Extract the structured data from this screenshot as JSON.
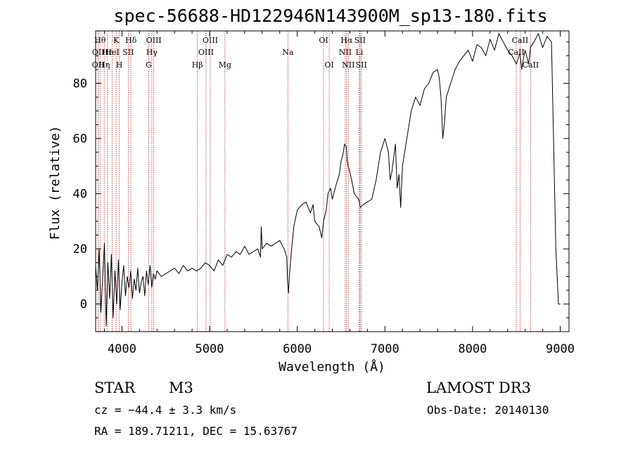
{
  "colors": {
    "line_marker": "#b22222",
    "spectrum": "#000000",
    "axes": "#000000"
  },
  "title": "spec-56688-HD122946N143900M_sp13-180.fits",
  "info": {
    "class_label": "STAR",
    "subclass": "M3",
    "survey": "LAMOST DR3",
    "cz": "cz = −44.4 ± 3.3 km/s",
    "obs_date": "Obs-Date: 20140130",
    "radec": "RA = 189.71211, DEC =  15.63767"
  },
  "chart_data": {
    "type": "line",
    "title": "spec-56688-HD122946N143900M_sp13-180.fits",
    "xlabel": "Wavelength (Å)",
    "ylabel": "Flux (relative)",
    "xlim": [
      3700,
      9100
    ],
    "ylim": [
      -10,
      99
    ],
    "xticks": [
      4000,
      5000,
      6000,
      7000,
      8000,
      9000
    ],
    "yticks": [
      0,
      20,
      40,
      60,
      80
    ],
    "grid": false,
    "series": [
      {
        "name": "spectrum",
        "x": [
          3700,
          3720,
          3740,
          3760,
          3780,
          3800,
          3820,
          3840,
          3860,
          3880,
          3900,
          3920,
          3940,
          3960,
          3980,
          4000,
          4020,
          4040,
          4060,
          4080,
          4100,
          4120,
          4140,
          4160,
          4180,
          4200,
          4220,
          4240,
          4260,
          4280,
          4300,
          4320,
          4340,
          4360,
          4380,
          4400,
          4450,
          4500,
          4550,
          4600,
          4650,
          4700,
          4750,
          4800,
          4850,
          4900,
          4950,
          5000,
          5050,
          5100,
          5150,
          5200,
          5250,
          5300,
          5350,
          5400,
          5450,
          5500,
          5550,
          5580,
          5590,
          5600,
          5650,
          5700,
          5750,
          5800,
          5850,
          5880,
          5890,
          5900,
          5910,
          5930,
          5960,
          6000,
          6050,
          6100,
          6150,
          6180,
          6200,
          6250,
          6280,
          6300,
          6330,
          6350,
          6380,
          6400,
          6450,
          6480,
          6500,
          6520,
          6540,
          6560,
          6570,
          6580,
          6600,
          6620,
          6650,
          6700,
          6720,
          6750,
          6800,
          6850,
          6900,
          6950,
          7000,
          7040,
          7050,
          7060,
          7080,
          7100,
          7120,
          7140,
          7160,
          7180,
          7200,
          7300,
          7350,
          7400,
          7450,
          7500,
          7550,
          7600,
          7620,
          7640,
          7660,
          7680,
          7700,
          7750,
          7800,
          7850,
          7900,
          7950,
          8000,
          8050,
          8100,
          8150,
          8200,
          8250,
          8300,
          8350,
          8400,
          8450,
          8500,
          8540,
          8560,
          8580,
          8600,
          8640,
          8660,
          8700,
          8750,
          8800,
          8850,
          8900,
          8950,
          8980,
          9000
        ],
        "values": [
          14,
          5,
          20,
          -3,
          10,
          22,
          -8,
          15,
          2,
          18,
          -5,
          12,
          0,
          16,
          -2,
          8,
          14,
          3,
          10,
          6,
          12,
          2,
          9,
          5,
          13,
          4,
          8,
          10,
          3,
          12,
          7,
          14,
          6,
          11,
          9,
          12,
          10,
          11,
          12,
          13,
          11,
          14,
          12,
          13,
          12,
          13,
          15,
          14,
          12,
          16,
          14,
          18,
          17,
          19,
          18,
          21,
          18,
          19,
          20,
          17,
          28,
          20,
          22,
          21,
          22,
          23,
          20,
          17,
          8,
          4,
          10,
          18,
          28,
          34,
          36,
          37,
          33,
          36,
          30,
          28,
          24,
          30,
          34,
          40,
          42,
          38,
          44,
          47,
          52,
          54,
          58,
          57,
          52,
          50,
          48,
          45,
          40,
          38,
          35,
          36,
          37,
          38,
          45,
          55,
          60,
          55,
          50,
          45,
          48,
          53,
          58,
          42,
          47,
          35,
          50,
          70,
          75,
          72,
          78,
          80,
          84,
          85,
          82,
          75,
          60,
          66,
          75,
          80,
          85,
          88,
          90,
          92,
          88,
          94,
          93,
          90,
          96,
          92,
          98,
          95,
          92,
          90,
          87,
          91,
          85,
          89,
          92,
          87,
          93,
          95,
          98,
          93,
          97,
          95,
          20,
          0,
          0
        ]
      }
    ],
    "line_markers": [
      {
        "wavelength": 3750,
        "row": 0,
        "label": "Hθ"
      },
      {
        "wavelength": 3729,
        "row": 1,
        "label": "OII"
      },
      {
        "wavelength": 3729,
        "row": 2,
        "label": "OII"
      },
      {
        "wavelength": 3798,
        "row": 2,
        "label": "Hη"
      },
      {
        "wavelength": 3835,
        "row": 1,
        "label": "Hε"
      },
      {
        "wavelength": 3889,
        "row": 1,
        "label": "HeI"
      },
      {
        "wavelength": 3934,
        "row": 0,
        "label": "K"
      },
      {
        "wavelength": 3969,
        "row": 2,
        "label": "H"
      },
      {
        "wavelength": 4072,
        "row": 1,
        "label": "SII"
      },
      {
        "wavelength": 4102,
        "row": 0,
        "label": "Hδ"
      },
      {
        "wavelength": 4305,
        "row": 2,
        "label": "G"
      },
      {
        "wavelength": 4341,
        "row": 1,
        "label": "Hγ"
      },
      {
        "wavelength": 4363,
        "row": 0,
        "label": "OIII"
      },
      {
        "wavelength": 4861,
        "row": 2,
        "label": "Hβ"
      },
      {
        "wavelength": 4959,
        "row": 1,
        "label": "OIII"
      },
      {
        "wavelength": 5007,
        "row": 0,
        "label": "OIII"
      },
      {
        "wavelength": 5175,
        "row": 2,
        "label": "Mg"
      },
      {
        "wavelength": 5893,
        "row": 1,
        "label": "Na"
      },
      {
        "wavelength": 6300,
        "row": 0,
        "label": "OI"
      },
      {
        "wavelength": 6364,
        "row": 2,
        "label": "OI"
      },
      {
        "wavelength": 6548,
        "row": 1,
        "label": "NII"
      },
      {
        "wavelength": 6563,
        "row": 0,
        "label": "Hα"
      },
      {
        "wavelength": 6583,
        "row": 2,
        "label": "NII"
      },
      {
        "wavelength": 6708,
        "row": 1,
        "label": "Li"
      },
      {
        "wavelength": 6716,
        "row": 0,
        "label": "SII"
      },
      {
        "wavelength": 6731,
        "row": 2,
        "label": "SII"
      },
      {
        "wavelength": 8498,
        "row": 1,
        "label": "CaII"
      },
      {
        "wavelength": 8542,
        "row": 0,
        "label": "CaII"
      },
      {
        "wavelength": 8662,
        "row": 2,
        "label": "CaII"
      }
    ]
  }
}
